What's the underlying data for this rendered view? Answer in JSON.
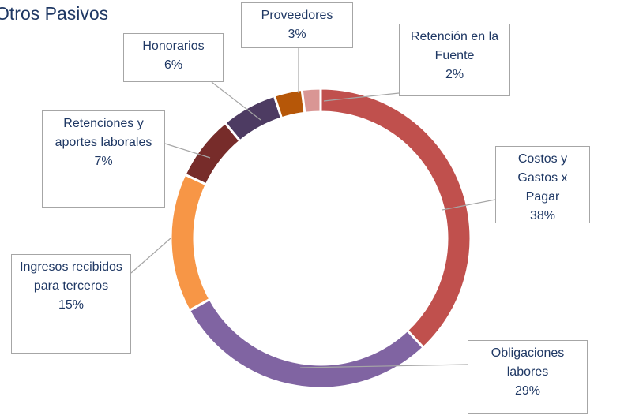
{
  "chart_data": {
    "type": "doughnut",
    "title": "Otros Pasivos",
    "categories": [
      "Costos y Gastos x Pagar",
      "Obligaciones labores",
      "Ingresos recibidos para terceros",
      "Retenciones y aportes laborales",
      "Honorarios",
      "Proveedores",
      "Retención en la Fuente"
    ],
    "values": [
      38,
      29,
      15,
      7,
      6,
      3,
      2
    ],
    "value_labels": [
      "38%",
      "29%",
      "15%",
      "7%",
      "6%",
      "3%",
      "2%"
    ],
    "colors": [
      "#c0504d",
      "#8064a2",
      "#f79646",
      "#772c2a",
      "#4d3b62",
      "#b65708",
      "#d99694"
    ]
  }
}
